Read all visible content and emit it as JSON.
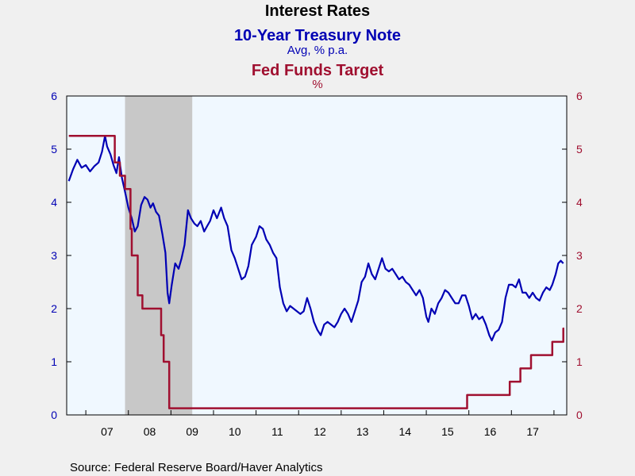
{
  "chart_data": {
    "type": "line",
    "title": "Interest Rates",
    "series": [
      {
        "name": "10-Year Treasury Note",
        "unit": "Avg, % p.a.",
        "color": "#0000b4",
        "axis": "left",
        "points": [
          [
            2006.6,
            4.4
          ],
          [
            2006.7,
            4.62
          ],
          [
            2006.8,
            4.8
          ],
          [
            2006.9,
            4.65
          ],
          [
            2007.0,
            4.7
          ],
          [
            2007.1,
            4.58
          ],
          [
            2007.2,
            4.68
          ],
          [
            2007.3,
            4.75
          ],
          [
            2007.38,
            4.95
          ],
          [
            2007.45,
            5.25
          ],
          [
            2007.5,
            5.05
          ],
          [
            2007.58,
            4.9
          ],
          [
            2007.65,
            4.7
          ],
          [
            2007.72,
            4.55
          ],
          [
            2007.78,
            4.85
          ],
          [
            2007.85,
            4.45
          ],
          [
            2007.92,
            4.2
          ],
          [
            2008.0,
            3.9
          ],
          [
            2008.08,
            3.7
          ],
          [
            2008.15,
            3.45
          ],
          [
            2008.22,
            3.55
          ],
          [
            2008.3,
            3.95
          ],
          [
            2008.38,
            4.1
          ],
          [
            2008.45,
            4.05
          ],
          [
            2008.52,
            3.9
          ],
          [
            2008.58,
            3.98
          ],
          [
            2008.65,
            3.82
          ],
          [
            2008.72,
            3.75
          ],
          [
            2008.8,
            3.4
          ],
          [
            2008.87,
            3.05
          ],
          [
            2008.92,
            2.3
          ],
          [
            2008.96,
            2.1
          ],
          [
            2009.02,
            2.45
          ],
          [
            2009.1,
            2.85
          ],
          [
            2009.18,
            2.75
          ],
          [
            2009.25,
            2.95
          ],
          [
            2009.32,
            3.2
          ],
          [
            2009.4,
            3.85
          ],
          [
            2009.47,
            3.7
          ],
          [
            2009.55,
            3.6
          ],
          [
            2009.62,
            3.55
          ],
          [
            2009.7,
            3.65
          ],
          [
            2009.78,
            3.45
          ],
          [
            2009.85,
            3.55
          ],
          [
            2009.92,
            3.65
          ],
          [
            2010.0,
            3.85
          ],
          [
            2010.08,
            3.7
          ],
          [
            2010.18,
            3.9
          ],
          [
            2010.25,
            3.7
          ],
          [
            2010.33,
            3.55
          ],
          [
            2010.42,
            3.1
          ],
          [
            2010.5,
            2.95
          ],
          [
            2010.58,
            2.75
          ],
          [
            2010.66,
            2.55
          ],
          [
            2010.74,
            2.6
          ],
          [
            2010.82,
            2.8
          ],
          [
            2010.9,
            3.2
          ],
          [
            2011.0,
            3.35
          ],
          [
            2011.08,
            3.55
          ],
          [
            2011.16,
            3.5
          ],
          [
            2011.24,
            3.3
          ],
          [
            2011.32,
            3.2
          ],
          [
            2011.4,
            3.05
          ],
          [
            2011.48,
            2.95
          ],
          [
            2011.56,
            2.4
          ],
          [
            2011.64,
            2.1
          ],
          [
            2011.72,
            1.95
          ],
          [
            2011.8,
            2.05
          ],
          [
            2011.88,
            2.0
          ],
          [
            2011.96,
            1.95
          ],
          [
            2012.04,
            1.9
          ],
          [
            2012.12,
            1.95
          ],
          [
            2012.2,
            2.2
          ],
          [
            2012.28,
            2.0
          ],
          [
            2012.36,
            1.75
          ],
          [
            2012.44,
            1.6
          ],
          [
            2012.52,
            1.5
          ],
          [
            2012.6,
            1.7
          ],
          [
            2012.68,
            1.75
          ],
          [
            2012.76,
            1.7
          ],
          [
            2012.84,
            1.65
          ],
          [
            2012.92,
            1.75
          ],
          [
            2013.0,
            1.9
          ],
          [
            2013.08,
            2.0
          ],
          [
            2013.16,
            1.9
          ],
          [
            2013.24,
            1.75
          ],
          [
            2013.32,
            1.95
          ],
          [
            2013.4,
            2.15
          ],
          [
            2013.48,
            2.5
          ],
          [
            2013.56,
            2.6
          ],
          [
            2013.64,
            2.85
          ],
          [
            2013.72,
            2.65
          ],
          [
            2013.8,
            2.55
          ],
          [
            2013.88,
            2.75
          ],
          [
            2013.96,
            2.95
          ],
          [
            2014.04,
            2.75
          ],
          [
            2014.12,
            2.7
          ],
          [
            2014.2,
            2.75
          ],
          [
            2014.28,
            2.65
          ],
          [
            2014.36,
            2.55
          ],
          [
            2014.44,
            2.6
          ],
          [
            2014.52,
            2.5
          ],
          [
            2014.6,
            2.45
          ],
          [
            2014.68,
            2.35
          ],
          [
            2014.76,
            2.25
          ],
          [
            2014.84,
            2.35
          ],
          [
            2014.92,
            2.2
          ],
          [
            2015.0,
            1.85
          ],
          [
            2015.05,
            1.75
          ],
          [
            2015.12,
            2.0
          ],
          [
            2015.2,
            1.9
          ],
          [
            2015.28,
            2.1
          ],
          [
            2015.36,
            2.2
          ],
          [
            2015.44,
            2.35
          ],
          [
            2015.52,
            2.3
          ],
          [
            2015.6,
            2.2
          ],
          [
            2015.68,
            2.1
          ],
          [
            2015.76,
            2.1
          ],
          [
            2015.84,
            2.25
          ],
          [
            2015.92,
            2.25
          ],
          [
            2016.0,
            2.05
          ],
          [
            2016.08,
            1.8
          ],
          [
            2016.16,
            1.9
          ],
          [
            2016.24,
            1.8
          ],
          [
            2016.32,
            1.85
          ],
          [
            2016.4,
            1.7
          ],
          [
            2016.48,
            1.5
          ],
          [
            2016.54,
            1.4
          ],
          [
            2016.62,
            1.55
          ],
          [
            2016.7,
            1.6
          ],
          [
            2016.78,
            1.75
          ],
          [
            2016.86,
            2.2
          ],
          [
            2016.94,
            2.45
          ],
          [
            2017.02,
            2.45
          ],
          [
            2017.1,
            2.4
          ],
          [
            2017.18,
            2.55
          ],
          [
            2017.26,
            2.3
          ],
          [
            2017.34,
            2.3
          ],
          [
            2017.42,
            2.2
          ],
          [
            2017.5,
            2.3
          ],
          [
            2017.58,
            2.2
          ],
          [
            2017.66,
            2.15
          ],
          [
            2017.74,
            2.3
          ],
          [
            2017.82,
            2.4
          ],
          [
            2017.9,
            2.35
          ],
          [
            2017.96,
            2.45
          ],
          [
            2018.04,
            2.65
          ],
          [
            2018.1,
            2.85
          ],
          [
            2018.16,
            2.9
          ],
          [
            2018.22,
            2.85
          ]
        ]
      },
      {
        "name": "Fed Funds Target",
        "unit": "%",
        "color": "#a01030",
        "axis": "right",
        "step": true,
        "points": [
          [
            2006.6,
            5.25
          ],
          [
            2007.68,
            4.75
          ],
          [
            2007.8,
            4.5
          ],
          [
            2007.92,
            4.25
          ],
          [
            2008.05,
            3.5
          ],
          [
            2008.08,
            3.0
          ],
          [
            2008.22,
            2.25
          ],
          [
            2008.33,
            2.0
          ],
          [
            2008.77,
            1.5
          ],
          [
            2008.83,
            1.0
          ],
          [
            2008.96,
            0.125
          ],
          [
            2015.96,
            0.375
          ],
          [
            2016.96,
            0.625
          ],
          [
            2017.21,
            0.875
          ],
          [
            2017.46,
            1.125
          ],
          [
            2017.96,
            1.375
          ],
          [
            2018.22,
            1.625
          ]
        ]
      }
    ],
    "x_ticks": [
      "07",
      "08",
      "09",
      "10",
      "11",
      "12",
      "13",
      "14",
      "15",
      "16",
      "17"
    ],
    "x_range": [
      2006.55,
      2018.3
    ],
    "ylim_left": [
      0,
      6
    ],
    "ylim_right": [
      0,
      6
    ],
    "y_ticks_left": [
      "0",
      "1",
      "2",
      "3",
      "4",
      "5",
      "6"
    ],
    "y_ticks_right": [
      "0",
      "1",
      "2",
      "3",
      "4",
      "5",
      "6"
    ],
    "recession_shading": [
      2007.92,
      2009.5
    ],
    "grid": false,
    "colors": {
      "plot_background": "#f0f8ff",
      "recession": "#c8c8c8",
      "page_background": "#f0f0f0"
    }
  },
  "labels": {
    "title": "Interest Rates",
    "series1_title": "10-Year Treasury Note",
    "series1_unit": "Avg, % p.a.",
    "series2_title": "Fed Funds Target",
    "series2_unit": "%",
    "source": "Source:  Federal Reserve Board/Haver Analytics"
  }
}
